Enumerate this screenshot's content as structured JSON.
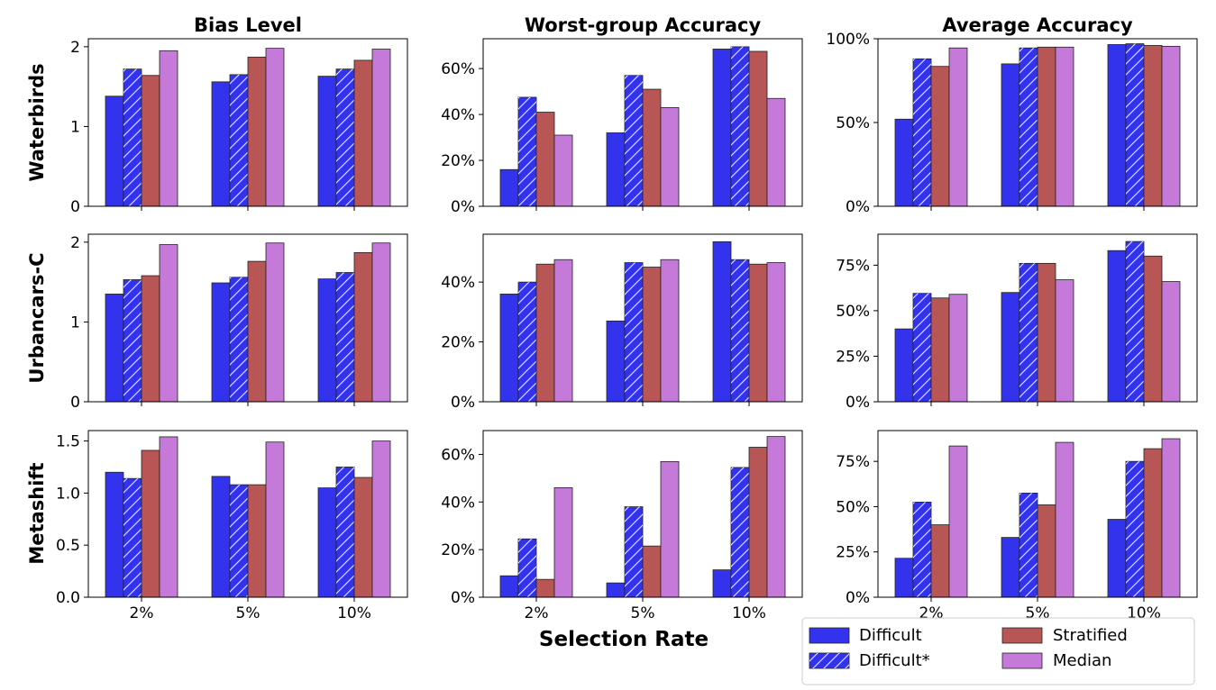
{
  "figure": {
    "column_titles": [
      "Bias Level",
      "Worst-group Accuracy",
      "Average Accuracy"
    ],
    "row_titles": [
      "Waterbirds",
      "Urbancars-C",
      "Metashift"
    ],
    "xlabel": "Selection Rate"
  },
  "legend": {
    "placement": "lower-right, below the Average Accuracy column",
    "items": [
      {
        "label": "Difficult",
        "color": "#3333ee",
        "hatch": false
      },
      {
        "label": "Difficult*",
        "color": "#3333ee",
        "hatch": true
      },
      {
        "label": "Stratified",
        "color": "#b85555",
        "hatch": false
      },
      {
        "label": "Median",
        "color": "#c57ad9",
        "hatch": false
      }
    ]
  },
  "chart_data": [
    {
      "type": "bar",
      "row": "Waterbirds",
      "column": "Bias Level",
      "categories": [
        "2%",
        "5%",
        "10%"
      ],
      "ylim": [
        0,
        2.1
      ],
      "yticks": [
        0,
        1,
        2
      ],
      "ytick_labels": [
        "0",
        "1",
        "2"
      ],
      "format": "number",
      "series": [
        {
          "name": "Difficult",
          "values": [
            1.38,
            1.56,
            1.63
          ]
        },
        {
          "name": "Difficult*",
          "values": [
            1.72,
            1.65,
            1.72
          ]
        },
        {
          "name": "Stratified",
          "values": [
            1.64,
            1.87,
            1.83
          ]
        },
        {
          "name": "Median",
          "values": [
            1.95,
            1.98,
            1.97
          ]
        }
      ]
    },
    {
      "type": "bar",
      "row": "Waterbirds",
      "column": "Worst-group Accuracy",
      "categories": [
        "2%",
        "5%",
        "10%"
      ],
      "ylim": [
        0,
        0.73
      ],
      "yticks": [
        0,
        0.2,
        0.4,
        0.6
      ],
      "ytick_labels": [
        "0%",
        "20%",
        "40%",
        "60%"
      ],
      "format": "percent",
      "series": [
        {
          "name": "Difficult",
          "values": [
            0.16,
            0.32,
            0.685
          ]
        },
        {
          "name": "Difficult*",
          "values": [
            0.475,
            0.57,
            0.695
          ]
        },
        {
          "name": "Stratified",
          "values": [
            0.41,
            0.51,
            0.675
          ]
        },
        {
          "name": "Median",
          "values": [
            0.31,
            0.43,
            0.47
          ]
        }
      ]
    },
    {
      "type": "bar",
      "row": "Waterbirds",
      "column": "Average Accuracy",
      "categories": [
        "2%",
        "5%",
        "10%"
      ],
      "ylim": [
        0,
        1.0
      ],
      "yticks": [
        0,
        0.5,
        1.0
      ],
      "ytick_labels": [
        "0%",
        "50%",
        "100%"
      ],
      "format": "percent",
      "series": [
        {
          "name": "Difficult",
          "values": [
            0.52,
            0.85,
            0.965
          ]
        },
        {
          "name": "Difficult*",
          "values": [
            0.88,
            0.945,
            0.97
          ]
        },
        {
          "name": "Stratified",
          "values": [
            0.835,
            0.95,
            0.96
          ]
        },
        {
          "name": "Median",
          "values": [
            0.945,
            0.95,
            0.955
          ]
        }
      ]
    },
    {
      "type": "bar",
      "row": "Urbancars-C",
      "column": "Bias Level",
      "categories": [
        "2%",
        "5%",
        "10%"
      ],
      "ylim": [
        0,
        2.1
      ],
      "yticks": [
        0,
        1,
        2
      ],
      "ytick_labels": [
        "0",
        "1",
        "2"
      ],
      "format": "number",
      "series": [
        {
          "name": "Difficult",
          "values": [
            1.35,
            1.49,
            1.54
          ]
        },
        {
          "name": "Difficult*",
          "values": [
            1.53,
            1.56,
            1.62
          ]
        },
        {
          "name": "Stratified",
          "values": [
            1.58,
            1.76,
            1.87
          ]
        },
        {
          "name": "Median",
          "values": [
            1.97,
            1.99,
            1.99
          ]
        }
      ]
    },
    {
      "type": "bar",
      "row": "Urbancars-C",
      "column": "Worst-group Accuracy",
      "categories": [
        "2%",
        "5%",
        "10%"
      ],
      "ylim": [
        0,
        0.56
      ],
      "yticks": [
        0,
        0.2,
        0.4
      ],
      "ytick_labels": [
        "0%",
        "20%",
        "40%"
      ],
      "format": "percent",
      "series": [
        {
          "name": "Difficult",
          "values": [
            0.36,
            0.27,
            0.535
          ]
        },
        {
          "name": "Difficult*",
          "values": [
            0.4,
            0.465,
            0.475
          ]
        },
        {
          "name": "Stratified",
          "values": [
            0.46,
            0.45,
            0.46
          ]
        },
        {
          "name": "Median",
          "values": [
            0.475,
            0.475,
            0.465
          ]
        }
      ]
    },
    {
      "type": "bar",
      "row": "Urbancars-C",
      "column": "Average Accuracy",
      "categories": [
        "2%",
        "5%",
        "10%"
      ],
      "ylim": [
        0,
        0.92
      ],
      "yticks": [
        0,
        0.25,
        0.5,
        0.75
      ],
      "ytick_labels": [
        "0%",
        "25%",
        "50%",
        "75%"
      ],
      "format": "percent",
      "series": [
        {
          "name": "Difficult",
          "values": [
            0.4,
            0.6,
            0.83
          ]
        },
        {
          "name": "Difficult*",
          "values": [
            0.595,
            0.76,
            0.88
          ]
        },
        {
          "name": "Stratified",
          "values": [
            0.57,
            0.76,
            0.8
          ]
        },
        {
          "name": "Median",
          "values": [
            0.59,
            0.67,
            0.66
          ]
        }
      ]
    },
    {
      "type": "bar",
      "row": "Metashift",
      "column": "Bias Level",
      "categories": [
        "2%",
        "5%",
        "10%"
      ],
      "ylim": [
        0,
        1.6
      ],
      "yticks": [
        0,
        0.5,
        1.0,
        1.5
      ],
      "ytick_labels": [
        "0.0",
        "0.5",
        "1.0",
        "1.5"
      ],
      "format": "number",
      "series": [
        {
          "name": "Difficult",
          "values": [
            1.2,
            1.16,
            1.05
          ]
        },
        {
          "name": "Difficult*",
          "values": [
            1.14,
            1.08,
            1.25
          ]
        },
        {
          "name": "Stratified",
          "values": [
            1.41,
            1.08,
            1.15
          ]
        },
        {
          "name": "Median",
          "values": [
            1.54,
            1.49,
            1.5
          ]
        }
      ]
    },
    {
      "type": "bar",
      "row": "Metashift",
      "column": "Worst-group Accuracy",
      "categories": [
        "2%",
        "5%",
        "10%"
      ],
      "ylim": [
        0,
        0.7
      ],
      "yticks": [
        0,
        0.2,
        0.4,
        0.6
      ],
      "ytick_labels": [
        "0%",
        "20%",
        "40%",
        "60%"
      ],
      "format": "percent",
      "series": [
        {
          "name": "Difficult",
          "values": [
            0.09,
            0.06,
            0.115
          ]
        },
        {
          "name": "Difficult*",
          "values": [
            0.245,
            0.38,
            0.545
          ]
        },
        {
          "name": "Stratified",
          "values": [
            0.075,
            0.215,
            0.63
          ]
        },
        {
          "name": "Median",
          "values": [
            0.46,
            0.57,
            0.675
          ]
        }
      ]
    },
    {
      "type": "bar",
      "row": "Metashift",
      "column": "Average Accuracy",
      "categories": [
        "2%",
        "5%",
        "10%"
      ],
      "ylim": [
        0,
        0.92
      ],
      "yticks": [
        0,
        0.25,
        0.5,
        0.75
      ],
      "ytick_labels": [
        "0%",
        "25%",
        "50%",
        "75%"
      ],
      "format": "percent",
      "series": [
        {
          "name": "Difficult",
          "values": [
            0.215,
            0.33,
            0.43
          ]
        },
        {
          "name": "Difficult*",
          "values": [
            0.525,
            0.575,
            0.75
          ]
        },
        {
          "name": "Stratified",
          "values": [
            0.4,
            0.51,
            0.82
          ]
        },
        {
          "name": "Median",
          "values": [
            0.835,
            0.855,
            0.875
          ]
        }
      ]
    }
  ]
}
